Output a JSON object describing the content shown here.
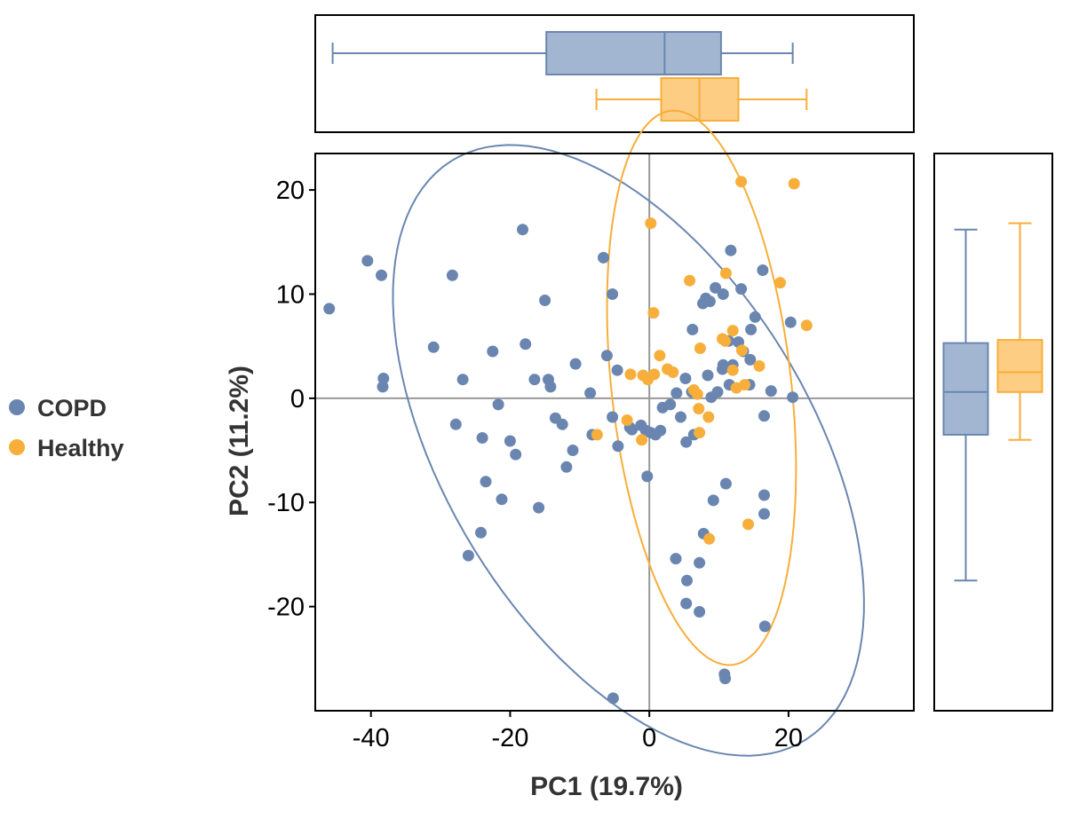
{
  "chart_data": {
    "type": "scatter",
    "title": "",
    "xlabel": "PC1  (19.7%)",
    "ylabel": "PC2  (11.2%)",
    "xlim": [
      -48,
      38
    ],
    "ylim": [
      -30,
      23.5
    ],
    "x_ticks": [
      -40,
      -20,
      0,
      20
    ],
    "y_ticks": [
      -20,
      -10,
      0,
      10,
      20
    ],
    "x_tick_labels": [
      "-40",
      "-20",
      "0",
      "20"
    ],
    "y_tick_labels": [
      "-20",
      "-10",
      "0",
      "10",
      "20"
    ],
    "reference_lines": {
      "x": 0,
      "y": 0
    },
    "grid": false,
    "legend": {
      "position": "left",
      "entries": [
        "COPD",
        "Healthy"
      ]
    },
    "colors": {
      "COPD": "#6a86b0",
      "Healthy": "#f7ae3a",
      "reference": "#999999",
      "frame": "#000000"
    },
    "series": [
      {
        "name": "COPD",
        "ellipse": {
          "center": [
            -3,
            -5
          ],
          "semi_axes": [
            39,
            22
          ],
          "rotation_deg": -37
        },
        "points": [
          [
            -46,
            8.6
          ],
          [
            -40.5,
            13.2
          ],
          [
            -38.5,
            11.8
          ],
          [
            -38.2,
            1.9
          ],
          [
            -38.3,
            1.1
          ],
          [
            -31,
            4.9
          ],
          [
            -28.3,
            11.8
          ],
          [
            -27.8,
            -2.5
          ],
          [
            -26.8,
            1.8
          ],
          [
            -26,
            -15.1
          ],
          [
            -24,
            -3.8
          ],
          [
            -24.2,
            -12.9
          ],
          [
            -23.5,
            -8
          ],
          [
            -22.5,
            4.5
          ],
          [
            -21.7,
            -0.6
          ],
          [
            -21.2,
            -9.7
          ],
          [
            -20,
            -4.1
          ],
          [
            -19.2,
            -5.4
          ],
          [
            -18.2,
            16.2
          ],
          [
            -17.8,
            5.2
          ],
          [
            -16.5,
            1.8
          ],
          [
            -15.9,
            -10.5
          ],
          [
            -15,
            9.4
          ],
          [
            -14.5,
            1.8
          ],
          [
            -14.2,
            1.1
          ],
          [
            -13.5,
            -1.9
          ],
          [
            -12.5,
            -2.5
          ],
          [
            -11.9,
            -6.6
          ],
          [
            -11,
            -5
          ],
          [
            -10.6,
            3.3
          ],
          [
            -8.5,
            0.5
          ],
          [
            -8.2,
            -3.5
          ],
          [
            -6.6,
            13.5
          ],
          [
            -6.1,
            4.1
          ],
          [
            -5.3,
            10
          ],
          [
            -5.3,
            -1.8
          ],
          [
            -4.6,
            2.7
          ],
          [
            -4.5,
            -4.6
          ],
          [
            -2.8,
            -2.8
          ],
          [
            -2.5,
            -3
          ],
          [
            -1.2,
            -2.6
          ],
          [
            -0.5,
            -3.1
          ],
          [
            -0.3,
            -7.5
          ],
          [
            0.2,
            -3.3
          ],
          [
            0.9,
            -3.5
          ],
          [
            1.6,
            -3.1
          ],
          [
            1.9,
            -0.9
          ],
          [
            3,
            -0.6
          ],
          [
            3.9,
            0.5
          ],
          [
            3.8,
            -15.4
          ],
          [
            4.5,
            -1.8
          ],
          [
            5.2,
            1.9
          ],
          [
            5.3,
            -4.2
          ],
          [
            5.4,
            -17.5
          ],
          [
            5.3,
            -19.7
          ],
          [
            6.1,
            0.6
          ],
          [
            6.2,
            6.6
          ],
          [
            6.4,
            -3.5
          ],
          [
            7.2,
            -15.8
          ],
          [
            7.2,
            -20.5
          ],
          [
            7.7,
            9.1
          ],
          [
            7.8,
            -13
          ],
          [
            8.1,
            9.6
          ],
          [
            8.4,
            2.2
          ],
          [
            8.7,
            9.3
          ],
          [
            8.9,
            0.1
          ],
          [
            9.2,
            -9.8
          ],
          [
            9.5,
            10.6
          ],
          [
            9.8,
            0.6
          ],
          [
            10.5,
            2.8
          ],
          [
            10.6,
            3.2
          ],
          [
            10.6,
            10
          ],
          [
            11,
            -8.2
          ],
          [
            10.8,
            -26.5
          ],
          [
            10.9,
            -26.9
          ],
          [
            11.4,
            5.5
          ],
          [
            11.5,
            1.3
          ],
          [
            11.7,
            14.2
          ],
          [
            12,
            3.2
          ],
          [
            12.8,
            5.4
          ],
          [
            13.2,
            10.5
          ],
          [
            13.5,
            4.5
          ],
          [
            14.4,
            1.3
          ],
          [
            14.6,
            6.6
          ],
          [
            14.5,
            3.7
          ],
          [
            15.2,
            7.8
          ],
          [
            16.3,
            12.3
          ],
          [
            16.5,
            -9.3
          ],
          [
            16.5,
            -1.7
          ],
          [
            16.5,
            -11.1
          ],
          [
            16.6,
            -21.9
          ],
          [
            17.5,
            0.7
          ],
          [
            20.3,
            7.3
          ],
          [
            20.6,
            0.1
          ],
          [
            -5.2,
            -28.8
          ]
        ]
      },
      {
        "name": "Healthy",
        "ellipse": {
          "center": [
            7.5,
            1
          ],
          "semi_axes": [
            27,
            12.8
          ],
          "rotation_deg": -79
        },
        "points": [
          [
            -7.5,
            -3.5
          ],
          [
            -3.2,
            -2.1
          ],
          [
            -2.7,
            2.3
          ],
          [
            -1.1,
            -4
          ],
          [
            -0.9,
            2.2
          ],
          [
            -0.2,
            1.8
          ],
          [
            0.2,
            16.8
          ],
          [
            0.6,
            8.2
          ],
          [
            0.7,
            2.3
          ],
          [
            1.5,
            4.1
          ],
          [
            2.6,
            2.8
          ],
          [
            3.4,
            2.5
          ],
          [
            5.8,
            11.3
          ],
          [
            6.4,
            0.8
          ],
          [
            6.9,
            0.4
          ],
          [
            7.1,
            -1
          ],
          [
            7.2,
            -3.3
          ],
          [
            7.3,
            4.8
          ],
          [
            8.5,
            -1.8
          ],
          [
            8.6,
            -13.5
          ],
          [
            10.5,
            5.7
          ],
          [
            10.9,
            5.5
          ],
          [
            11,
            12
          ],
          [
            12,
            6.5
          ],
          [
            12,
            2.7
          ],
          [
            12.5,
            1
          ],
          [
            13.3,
            4.6
          ],
          [
            13.2,
            20.8
          ],
          [
            13.7,
            1.3
          ],
          [
            14.2,
            -12.1
          ],
          [
            15.8,
            3.1
          ],
          [
            18.8,
            11.1
          ],
          [
            20.8,
            20.6
          ],
          [
            22.6,
            7
          ]
        ]
      }
    ],
    "marginal_boxplots": {
      "top": {
        "axis": "PC1",
        "boxes": [
          {
            "name": "COPD",
            "whisker_low": -45.5,
            "q1": -14.8,
            "median": 2.2,
            "q3": 10.3,
            "whisker_high": 20.6
          },
          {
            "name": "Healthy",
            "whisker_low": -7.6,
            "q1": 1.7,
            "median": 7.2,
            "q3": 12.8,
            "whisker_high": 22.6
          }
        ]
      },
      "right": {
        "axis": "PC2",
        "boxes": [
          {
            "name": "COPD",
            "whisker_low": -17.5,
            "q1": -3.5,
            "median": 0.6,
            "q3": 5.3,
            "whisker_high": 16.2
          },
          {
            "name": "Healthy",
            "whisker_low": -4,
            "q1": 0.6,
            "median": 2.5,
            "q3": 5.6,
            "whisker_high": 16.8
          }
        ]
      }
    }
  }
}
